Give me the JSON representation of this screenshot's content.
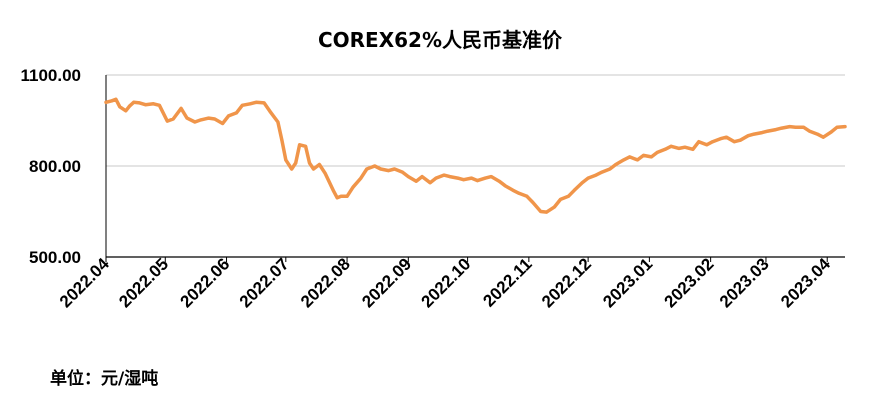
{
  "chart_data": {
    "type": "line",
    "title": "COREX62%人民币基准价",
    "unit_note": "单位：元/湿吨",
    "ylim": [
      500,
      1100
    ],
    "yticks": [
      "500.00",
      "800.00",
      "1100.00"
    ],
    "ytick_values": [
      500,
      800,
      1100
    ],
    "grid": true,
    "x_range": [
      "2022-04-01",
      "2023-04-10"
    ],
    "xticks": [
      "2022.04",
      "2022.05",
      "2022.06",
      "2022.07",
      "2022.08",
      "2022.09",
      "2022.10",
      "2022.11",
      "2022.12",
      "2023.01",
      "2023.02",
      "2023.03",
      "2023.04"
    ],
    "xtick_dates": [
      "2022-04-01",
      "2022-05-01",
      "2022-06-01",
      "2022-07-01",
      "2022-08-01",
      "2022-09-01",
      "2022-10-01",
      "2022-11-01",
      "2022-12-01",
      "2023-01-01",
      "2023-02-01",
      "2023-03-01",
      "2023-04-01"
    ],
    "series_color": "#F0954A",
    "series": [
      {
        "x": [
          "2022-04-01",
          "2022-04-04",
          "2022-04-06",
          "2022-04-08",
          "2022-04-11",
          "2022-04-13",
          "2022-04-15",
          "2022-04-18",
          "2022-04-21",
          "2022-04-25",
          "2022-04-28",
          "2022-05-02",
          "2022-05-05",
          "2022-05-09",
          "2022-05-12",
          "2022-05-16",
          "2022-05-19",
          "2022-05-23",
          "2022-05-26",
          "2022-05-30",
          "2022-06-02",
          "2022-06-06",
          "2022-06-09",
          "2022-06-13",
          "2022-06-16",
          "2022-06-20",
          "2022-06-23",
          "2022-06-27",
          "2022-06-29",
          "2022-07-01",
          "2022-07-04",
          "2022-07-06",
          "2022-07-08",
          "2022-07-11",
          "2022-07-13",
          "2022-07-15",
          "2022-07-18",
          "2022-07-21",
          "2022-07-25",
          "2022-07-27",
          "2022-07-29",
          "2022-08-01",
          "2022-08-04",
          "2022-08-08",
          "2022-08-11",
          "2022-08-15",
          "2022-08-18",
          "2022-08-22",
          "2022-08-25",
          "2022-08-29",
          "2022-09-01",
          "2022-09-05",
          "2022-09-08",
          "2022-09-12",
          "2022-09-15",
          "2022-09-19",
          "2022-09-22",
          "2022-09-26",
          "2022-09-29",
          "2022-10-03",
          "2022-10-06",
          "2022-10-10",
          "2022-10-13",
          "2022-10-17",
          "2022-10-20",
          "2022-10-24",
          "2022-10-27",
          "2022-10-31",
          "2022-11-03",
          "2022-11-07",
          "2022-11-10",
          "2022-11-14",
          "2022-11-17",
          "2022-11-21",
          "2022-11-24",
          "2022-11-28",
          "2022-12-01",
          "2022-12-05",
          "2022-12-08",
          "2022-12-12",
          "2022-12-15",
          "2022-12-19",
          "2022-12-22",
          "2022-12-26",
          "2022-12-29",
          "2023-01-02",
          "2023-01-05",
          "2023-01-09",
          "2023-01-12",
          "2023-01-16",
          "2023-01-19",
          "2023-01-23",
          "2023-01-26",
          "2023-01-30",
          "2023-02-02",
          "2023-02-06",
          "2023-02-09",
          "2023-02-13",
          "2023-02-16",
          "2023-02-20",
          "2023-02-23",
          "2023-02-27",
          "2023-03-02",
          "2023-03-06",
          "2023-03-09",
          "2023-03-13",
          "2023-03-16",
          "2023-03-20",
          "2023-03-23",
          "2023-03-27",
          "2023-03-30",
          "2023-04-03",
          "2023-04-06",
          "2023-04-10"
        ],
        "y": [
          1010,
          1015,
          1020,
          995,
          982,
          998,
          1010,
          1008,
          1002,
          1005,
          1000,
          948,
          955,
          990,
          958,
          945,
          952,
          958,
          955,
          940,
          965,
          975,
          1000,
          1005,
          1010,
          1008,
          980,
          945,
          885,
          820,
          790,
          810,
          870,
          865,
          810,
          790,
          805,
          775,
          720,
          695,
          700,
          700,
          730,
          760,
          790,
          800,
          790,
          785,
          790,
          780,
          765,
          750,
          765,
          745,
          760,
          770,
          765,
          760,
          755,
          760,
          752,
          760,
          765,
          750,
          735,
          720,
          710,
          700,
          680,
          650,
          648,
          665,
          690,
          700,
          720,
          745,
          760,
          770,
          780,
          790,
          805,
          820,
          830,
          820,
          835,
          830,
          845,
          855,
          865,
          858,
          862,
          855,
          880,
          870,
          880,
          890,
          895,
          880,
          885,
          900,
          905,
          910,
          915,
          920,
          925,
          930,
          928,
          928,
          915,
          905,
          895,
          912,
          928,
          930
        ]
      }
    ]
  }
}
